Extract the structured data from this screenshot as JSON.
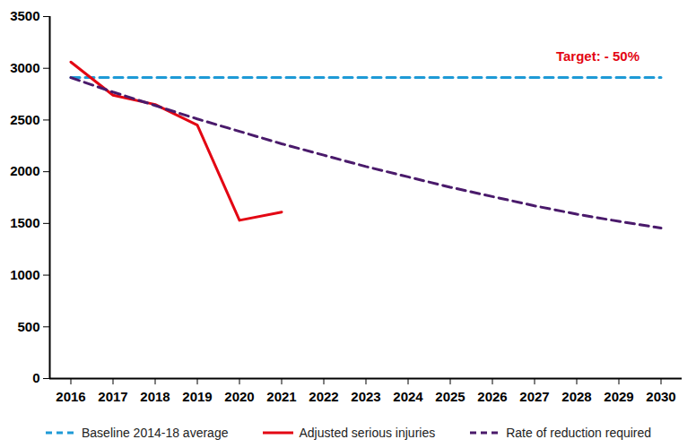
{
  "chart_data": {
    "type": "line",
    "x": [
      2016,
      2017,
      2018,
      2019,
      2020,
      2021,
      2022,
      2023,
      2024,
      2025,
      2026,
      2027,
      2028,
      2029,
      2030
    ],
    "series": [
      {
        "name": "Baseline 2014-18 average",
        "color": "#1e9ad6",
        "line_style": "dashed",
        "values": [
          2910,
          2910,
          2910,
          2910,
          2910,
          2910,
          2910,
          2910,
          2910,
          2910,
          2910,
          2910,
          2910,
          2910,
          2910
        ]
      },
      {
        "name": "Adjusted serious injuries",
        "color": "#e30613",
        "line_style": "solid",
        "values": [
          3060,
          2740,
          2650,
          2450,
          1530,
          1610,
          null,
          null,
          null,
          null,
          null,
          null,
          null,
          null,
          null
        ]
      },
      {
        "name": "Rate of reduction required",
        "color": "#4a1a6b",
        "line_style": "dashed",
        "values": [
          2910,
          2770,
          2640,
          2510,
          2390,
          2270,
          2160,
          2050,
          1950,
          1850,
          1760,
          1670,
          1590,
          1520,
          1455
        ]
      }
    ],
    "xlim": [
      2015.5,
      2030.5
    ],
    "ylim": [
      0,
      3500
    ],
    "xticks": [
      2016,
      2017,
      2018,
      2019,
      2020,
      2021,
      2022,
      2023,
      2024,
      2025,
      2026,
      2027,
      2028,
      2029,
      2030
    ],
    "yticks": [
      0,
      500,
      1000,
      1500,
      2000,
      2500,
      3000,
      3500
    ],
    "annotations": [
      {
        "text": "Target: - 50%",
        "x": 2028.5,
        "y": 3110
      }
    ],
    "grid": false,
    "legend": "bottom"
  }
}
